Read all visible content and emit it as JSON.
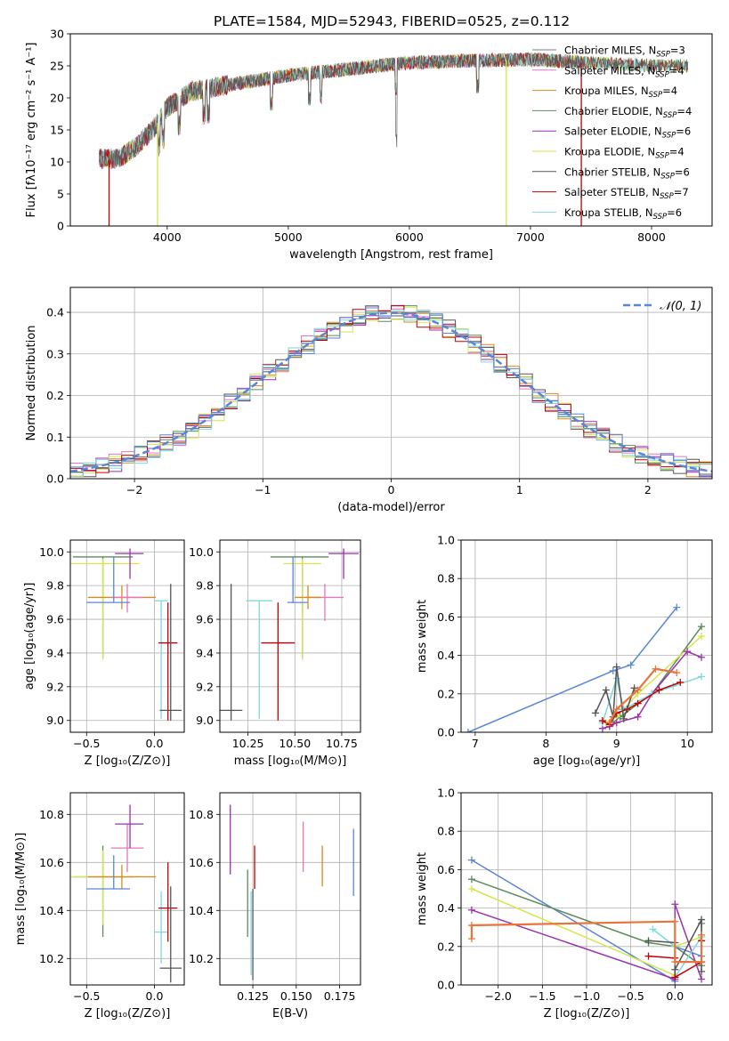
{
  "colors": {
    "chabrier_miles": "#7f7f7f",
    "salpeter_miles": "#e377c2",
    "kroupa_miles": "#d98a1c",
    "chabrier_elodie": "#5c8c5c",
    "salpeter_elodie": "#9b30b0",
    "kroupa_elodie": "#d6e64a",
    "chabrier_stelib": "#555555",
    "salpeter_stelib": "#c00000",
    "kroupa_stelib": "#7fd7e0",
    "blue": "#5a86d6",
    "orange": "#e8743b",
    "grid": "#b0b0b0"
  },
  "chart_data": [
    {
      "id": "spectrum",
      "type": "line",
      "title": "PLATE=1584, MJD=52943, FIBERID=0525, z=0.112",
      "xlabel": "wavelength [Angstrom, rest frame]",
      "ylabel": "Flux [fλ10⁻¹⁷ erg cm⁻² s⁻¹ A⁻¹]",
      "xlim": [
        3200,
        8500
      ],
      "ylim": [
        0,
        30
      ],
      "xticks": [
        4000,
        5000,
        6000,
        7000,
        8000
      ],
      "yticks": [
        0,
        5,
        10,
        15,
        20,
        25,
        30
      ],
      "grid": false,
      "legend_position": "top-right",
      "series": [
        {
          "name": "Chabrier MILES, N",
          "sub": "SSP",
          "suffix": "=3",
          "color_key": "chabrier_miles"
        },
        {
          "name": "Salpeter MILES, N",
          "sub": "SSP",
          "suffix": "=4",
          "color_key": "salpeter_miles"
        },
        {
          "name": "Kroupa MILES, N",
          "sub": "SSP",
          "suffix": "=4",
          "color_key": "kroupa_miles"
        },
        {
          "name": "Chabrier ELODIE, N",
          "sub": "SSP",
          "suffix": "=4",
          "color_key": "chabrier_elodie"
        },
        {
          "name": "Salpeter ELODIE, N",
          "sub": "SSP",
          "suffix": "=6",
          "color_key": "salpeter_elodie"
        },
        {
          "name": "Kroupa ELODIE, N",
          "sub": "SSP",
          "suffix": "=4",
          "color_key": "kroupa_elodie"
        },
        {
          "name": "Chabrier STELIB, N",
          "sub": "SSP",
          "suffix": "=6",
          "color_key": "chabrier_stelib"
        },
        {
          "name": "Salpeter STELIB, N",
          "sub": "SSP",
          "suffix": "=7",
          "color_key": "salpeter_stelib"
        },
        {
          "name": "Kroupa STELIB, N",
          "sub": "SSP",
          "suffix": "=6",
          "color_key": "kroupa_stelib"
        }
      ],
      "continuum": {
        "x": [
          3440,
          3600,
          3750,
          3900,
          4000,
          4200,
          4500,
          5000,
          5500,
          6000,
          6500,
          7000,
          7500,
          8000,
          8300
        ],
        "y": [
          10.5,
          10.5,
          12.5,
          15.5,
          18.5,
          21,
          22,
          23.5,
          24.5,
          25.5,
          25.8,
          26,
          25.5,
          25,
          25
        ]
      },
      "edge_drops": [
        {
          "x": 3520,
          "color_key": "salpeter_stelib"
        },
        {
          "x": 3920,
          "color_key": "kroupa_elodie"
        },
        {
          "x": 6800,
          "color_key": "kroupa_elodie"
        },
        {
          "x": 7420,
          "color_key": "salpeter_stelib"
        }
      ]
    },
    {
      "id": "residuals",
      "type": "histogram",
      "xlabel": "(data-model)/error",
      "ylabel": "Normed distribution",
      "xlim": [
        -2.5,
        2.5
      ],
      "ylim": [
        0,
        0.46
      ],
      "xticks": [
        -2,
        -1,
        0,
        1,
        2
      ],
      "yticks": [
        0.0,
        0.1,
        0.2,
        0.3,
        0.4
      ],
      "grid": true,
      "legend_position": "top-right",
      "legend_label": "𝒩(0, 1)",
      "bin_width": 0.1,
      "n_histograms": 9
    },
    {
      "id": "age_vs_Z",
      "type": "errorbar",
      "xlabel": "Z [log₁₀(Z/Z⊙)]",
      "ylabel": "age  [log₁₀(age/yr)]",
      "xlim": [
        -0.62,
        0.22
      ],
      "ylim": [
        8.93,
        10.07
      ],
      "xticks": [
        -0.5,
        0.0
      ],
      "yticks": [
        9.0,
        9.2,
        9.4,
        9.6,
        9.8,
        10.0
      ],
      "grid": true,
      "points": [
        {
          "x": -0.38,
          "y": 9.97,
          "xerr": [
            0.22,
            0.22
          ],
          "yerr": [
            0.6,
            0.0
          ],
          "color_key": "chabrier_elodie"
        },
        {
          "x": -0.38,
          "y": 9.93,
          "xerr": [
            0.25,
            0.27
          ],
          "yerr": [
            0.57,
            0.03
          ],
          "color_key": "kroupa_elodie"
        },
        {
          "x": -0.18,
          "y": 9.99,
          "xerr": [
            0.11,
            0.1
          ],
          "yerr": [
            0.15,
            0.03
          ],
          "color_key": "salpeter_elodie"
        },
        {
          "x": -0.24,
          "y": 9.73,
          "xerr": [
            0.25,
            0.25
          ],
          "yerr": [
            0.07,
            0.07
          ],
          "color_key": "kroupa_miles"
        },
        {
          "x": -0.2,
          "y": 9.73,
          "xerr": [
            0.12,
            0.12
          ],
          "yerr": [
            0.09,
            0.08
          ],
          "color_key": "salpeter_miles"
        },
        {
          "x": -0.3,
          "y": 9.7,
          "xerr": [
            0.2,
            0.12
          ],
          "yerr": [
            0.0,
            0.27
          ],
          "color_key": "blue"
        },
        {
          "x": 0.05,
          "y": 9.71,
          "xerr": [
            0.05,
            0.05
          ],
          "yerr": [
            0.7,
            0.0
          ],
          "color_key": "kroupa_stelib"
        },
        {
          "x": 0.1,
          "y": 9.46,
          "xerr": [
            0.07,
            0.07
          ],
          "yerr": [
            0.46,
            0.24
          ],
          "color_key": "salpeter_stelib"
        },
        {
          "x": 0.12,
          "y": 9.06,
          "xerr": [
            0.08,
            0.08
          ],
          "yerr": [
            0.06,
            0.75
          ],
          "color_key": "chabrier_stelib"
        }
      ]
    },
    {
      "id": "age_vs_mass",
      "type": "errorbar",
      "xlabel": "mass [log₁₀(M/M⊙)]",
      "ylabel": "",
      "xlim": [
        10.1,
        10.85
      ],
      "ylim": [
        8.93,
        10.07
      ],
      "xticks": [
        10.25,
        10.5,
        10.75
      ],
      "yticks": [
        9.0,
        9.2,
        9.4,
        9.6,
        9.8,
        10.0
      ],
      "grid": true,
      "points": [
        {
          "x": 10.16,
          "y": 9.06,
          "xerr": [
            0.06,
            0.06
          ],
          "yerr": [
            0.06,
            0.75
          ],
          "color_key": "chabrier_stelib"
        },
        {
          "x": 10.31,
          "y": 9.71,
          "xerr": [
            0.07,
            0.07
          ],
          "yerr": [
            0.7,
            0.0
          ],
          "color_key": "kroupa_stelib"
        },
        {
          "x": 10.41,
          "y": 9.46,
          "xerr": [
            0.09,
            0.09
          ],
          "yerr": [
            0.46,
            0.24
          ],
          "color_key": "salpeter_stelib"
        },
        {
          "x": 10.54,
          "y": 9.97,
          "xerr": [
            0.17,
            0.14
          ],
          "yerr": [
            0.6,
            0.0
          ],
          "color_key": "chabrier_elodie"
        },
        {
          "x": 10.54,
          "y": 9.93,
          "xerr": [
            0.1,
            0.1
          ],
          "yerr": [
            0.57,
            0.03
          ],
          "color_key": "kroupa_elodie"
        },
        {
          "x": 10.66,
          "y": 9.73,
          "xerr": [
            0.1,
            0.1
          ],
          "yerr": [
            0.14,
            0.08
          ],
          "color_key": "salpeter_miles"
        },
        {
          "x": 10.57,
          "y": 9.73,
          "xerr": [
            0.07,
            0.07
          ],
          "yerr": [
            0.07,
            0.07
          ],
          "color_key": "kroupa_miles"
        },
        {
          "x": 10.49,
          "y": 9.7,
          "xerr": [
            0.03,
            0.08
          ],
          "yerr": [
            0.0,
            0.27
          ],
          "color_key": "blue"
        },
        {
          "x": 10.76,
          "y": 9.99,
          "xerr": [
            0.08,
            0.08
          ],
          "yerr": [
            0.15,
            0.03
          ],
          "color_key": "salpeter_elodie"
        }
      ]
    },
    {
      "id": "weight_vs_age",
      "type": "line",
      "xlabel": "age  [log₁₀(age/yr)]",
      "ylabel": "mass weight",
      "xlim": [
        6.8,
        10.35
      ],
      "ylim": [
        0,
        1.0
      ],
      "xticks": [
        7,
        8,
        9,
        10
      ],
      "yticks": [
        0.0,
        0.2,
        0.4,
        0.6,
        0.8,
        1.0
      ],
      "grid": true,
      "series": [
        {
          "color_key": "blue",
          "x": [
            6.9,
            8.95,
            9.2,
            9.85
          ],
          "y": [
            0.0,
            0.32,
            0.35,
            0.65
          ]
        },
        {
          "color_key": "chabrier_elodie",
          "x": [
            8.95,
            9.05,
            9.5,
            10.2
          ],
          "y": [
            0.05,
            0.08,
            0.2,
            0.55
          ]
        },
        {
          "color_key": "kroupa_elodie",
          "x": [
            8.85,
            9.0,
            9.3,
            10.2
          ],
          "y": [
            0.05,
            0.08,
            0.2,
            0.5
          ]
        },
        {
          "color_key": "salpeter_elodie",
          "x": [
            8.8,
            8.9,
            9.0,
            9.3,
            9.5,
            10.0,
            10.2
          ],
          "y": [
            0.02,
            0.03,
            0.05,
            0.08,
            0.2,
            0.42,
            0.39
          ]
        },
        {
          "color_key": "kroupa_stelib",
          "x": [
            8.8,
            9.0,
            9.1,
            9.5,
            9.8,
            10.2
          ],
          "y": [
            0.05,
            0.28,
            0.12,
            0.2,
            0.24,
            0.29
          ]
        },
        {
          "color_key": "salpeter_stelib",
          "x": [
            8.8,
            8.9,
            9.0,
            9.15,
            9.3,
            9.6,
            9.9
          ],
          "y": [
            0.06,
            0.04,
            0.1,
            0.12,
            0.15,
            0.22,
            0.26
          ]
        },
        {
          "color_key": "chabrier_stelib",
          "x": [
            8.7,
            8.85,
            8.95,
            9.0,
            9.1,
            9.25
          ],
          "y": [
            0.1,
            0.22,
            0.08,
            0.34,
            0.07,
            0.23
          ]
        },
        {
          "color_key": "orange",
          "x": [
            8.9,
            9.0,
            9.3,
            9.55,
            9.85
          ],
          "y": [
            0.05,
            0.12,
            0.22,
            0.33,
            0.31
          ]
        }
      ]
    },
    {
      "id": "mass_vs_Z",
      "type": "errorbar",
      "xlabel": "Z [log₁₀(Z/Z⊙)]",
      "ylabel": "mass [log₁₀(M/M⊙)]",
      "xlim": [
        -0.62,
        0.22
      ],
      "ylim": [
        10.09,
        10.89
      ],
      "xticks": [
        -0.5,
        0.0
      ],
      "yticks": [
        10.2,
        10.4,
        10.6,
        10.8
      ],
      "grid": true,
      "points": [
        {
          "x": -0.38,
          "y": 10.54,
          "xerr": [
            0.22,
            0.22
          ],
          "yerr": [
            0.25,
            0.13
          ],
          "color_key": "chabrier_elodie"
        },
        {
          "x": -0.38,
          "y": 10.54,
          "xerr": [
            0.25,
            0.27
          ],
          "yerr": [
            0.2,
            0.11
          ],
          "color_key": "kroupa_elodie"
        },
        {
          "x": -0.2,
          "y": 10.66,
          "xerr": [
            0.12,
            0.12
          ],
          "yerr": [
            0.1,
            0.1
          ],
          "color_key": "salpeter_miles"
        },
        {
          "x": -0.18,
          "y": 10.76,
          "xerr": [
            0.11,
            0.1
          ],
          "yerr": [
            0.1,
            0.08
          ],
          "color_key": "salpeter_elodie"
        },
        {
          "x": -0.24,
          "y": 10.54,
          "xerr": [
            0.25,
            0.25
          ],
          "yerr": [
            0.05,
            0.05
          ],
          "color_key": "kroupa_miles"
        },
        {
          "x": -0.3,
          "y": 10.49,
          "xerr": [
            0.2,
            0.12
          ],
          "yerr": [
            0.0,
            0.14
          ],
          "color_key": "blue"
        },
        {
          "x": 0.05,
          "y": 10.31,
          "xerr": [
            0.05,
            0.05
          ],
          "yerr": [
            0.13,
            0.17
          ],
          "color_key": "kroupa_stelib"
        },
        {
          "x": 0.1,
          "y": 10.41,
          "xerr": [
            0.07,
            0.07
          ],
          "yerr": [
            0.14,
            0.19
          ],
          "color_key": "salpeter_stelib"
        },
        {
          "x": 0.12,
          "y": 10.16,
          "xerr": [
            0.08,
            0.08
          ],
          "yerr": [
            0.06,
            0.34
          ],
          "color_key": "chabrier_stelib"
        }
      ]
    },
    {
      "id": "mass_vs_EBV",
      "type": "errorbar",
      "xlabel": "E(B-V)",
      "ylabel": "",
      "xlim": [
        0.106,
        0.187
      ],
      "ylim": [
        10.09,
        10.89
      ],
      "xticks": [
        0.125,
        0.15,
        0.175
      ],
      "yticks": [
        10.2,
        10.4,
        10.6,
        10.8
      ],
      "grid": true,
      "points": [
        {
          "x": 0.112,
          "y": 10.7,
          "xerr": [
            0,
            0
          ],
          "yerr": [
            0.15,
            0.14
          ],
          "color_key": "salpeter_elodie"
        },
        {
          "x": 0.122,
          "y": 10.48,
          "xerr": [
            0,
            0
          ],
          "yerr": [
            0.19,
            0.09
          ],
          "color_key": "chabrier_elodie"
        },
        {
          "x": 0.124,
          "y": 10.3,
          "xerr": [
            0,
            0
          ],
          "yerr": [
            0.17,
            0.18
          ],
          "color_key": "kroupa_stelib"
        },
        {
          "x": 0.125,
          "y": 10.37,
          "xerr": [
            0,
            0
          ],
          "yerr": [
            0.26,
            0.12
          ],
          "color_key": "chabrier_stelib"
        },
        {
          "x": 0.126,
          "y": 10.59,
          "xerr": [
            0,
            0
          ],
          "yerr": [
            0.1,
            0.08
          ],
          "color_key": "salpeter_stelib"
        },
        {
          "x": 0.154,
          "y": 10.66,
          "xerr": [
            0,
            0
          ],
          "yerr": [
            0.1,
            0.11
          ],
          "color_key": "salpeter_miles"
        },
        {
          "x": 0.165,
          "y": 10.57,
          "xerr": [
            0,
            0
          ],
          "yerr": [
            0.07,
            0.1
          ],
          "color_key": "kroupa_miles"
        },
        {
          "x": 0.183,
          "y": 10.6,
          "xerr": [
            0,
            0
          ],
          "yerr": [
            0.14,
            0.14
          ],
          "color_key": "blue"
        }
      ]
    },
    {
      "id": "weight_vs_Z",
      "type": "line",
      "xlabel": "Z [log₁₀(Z/Z⊙)]",
      "ylabel": "mass weight",
      "xlim": [
        -2.42,
        0.42
      ],
      "ylim": [
        0,
        1.0
      ],
      "xticks": [
        -2.0,
        -1.5,
        -1.0,
        -0.5,
        0.0
      ],
      "yticks": [
        0.0,
        0.2,
        0.4,
        0.6,
        0.8,
        1.0
      ],
      "grid": true,
      "series": [
        {
          "color_key": "blue",
          "x": [
            -2.3,
            0.0,
            0.0,
            0.3,
            0.3
          ],
          "y": [
            0.65,
            0.02,
            0.2,
            0.15,
            0.26
          ]
        },
        {
          "color_key": "chabrier_elodie",
          "x": [
            -2.3,
            -0.3,
            0.0,
            0.3,
            0.3
          ],
          "y": [
            0.55,
            0.22,
            0.2,
            0.1,
            0.32
          ]
        },
        {
          "color_key": "kroupa_elodie",
          "x": [
            -2.3,
            0.0,
            0.0,
            0.3
          ],
          "y": [
            0.5,
            0.05,
            0.2,
            0.25
          ]
        },
        {
          "color_key": "salpeter_elodie",
          "x": [
            -2.3,
            0.0,
            0.0,
            0.3
          ],
          "y": [
            0.39,
            0.03,
            0.42,
            0.03
          ]
        },
        {
          "color_key": "kroupa_stelib",
          "x": [
            -0.25,
            0.0,
            0.0,
            0.3
          ],
          "y": [
            0.29,
            0.2,
            0.04,
            0.25
          ]
        },
        {
          "color_key": "salpeter_stelib",
          "x": [
            -0.3,
            0.0,
            0.0,
            0.3,
            0.3
          ],
          "y": [
            0.15,
            0.14,
            0.04,
            0.12,
            0.23
          ]
        },
        {
          "color_key": "chabrier_stelib",
          "x": [
            -0.3,
            0.0,
            0.0,
            0.3,
            0.3
          ],
          "y": [
            0.23,
            0.22,
            0.08,
            0.34,
            0.07
          ]
        },
        {
          "color_key": "orange",
          "x": [
            -2.3,
            -2.3,
            0.0,
            0.0,
            0.3,
            0.3
          ],
          "y": [
            0.24,
            0.31,
            0.33,
            0.12,
            0.12,
            0.26
          ]
        }
      ]
    }
  ]
}
